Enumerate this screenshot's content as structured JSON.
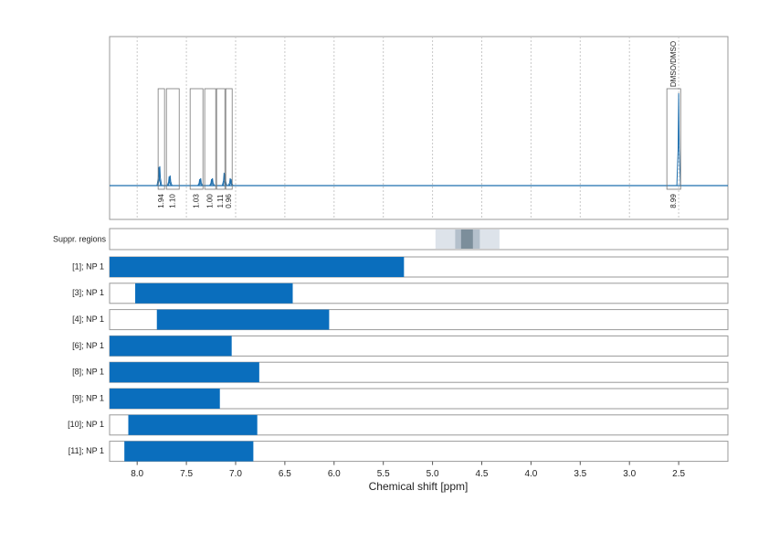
{
  "chart_data": {
    "type": "nmr-panels",
    "x_label": "Chemical shift [ppm]",
    "xlim": [
      8.28,
      2.0
    ],
    "xticks": [
      {
        "value": 8,
        "label": "8.0"
      },
      7.5,
      {
        "value": 7,
        "label": "7.0"
      },
      6.5,
      {
        "value": 6,
        "label": "6.0"
      },
      5.5,
      {
        "value": 5,
        "label": "5.0"
      },
      4.5,
      {
        "value": 4,
        "label": "4.0"
      },
      3.5,
      {
        "value": 3,
        "label": "3.0"
      },
      2.5
    ],
    "grid": true,
    "spectrum": {
      "color": "#1f6fae",
      "peaks": {
        "x": [
          7.78,
          7.77,
          7.675,
          7.665,
          7.365,
          7.355,
          7.245,
          7.235,
          7.117,
          7.108,
          7.055,
          7.045,
          2.5
        ],
        "values": [
          20,
          21,
          10,
          11,
          7,
          8,
          7,
          8,
          14,
          13,
          8,
          7,
          100
        ]
      }
    },
    "integrals": {
      "ranges": [
        [
          7.787,
          7.722
        ],
        [
          7.703,
          7.573
        ],
        [
          7.462,
          7.332
        ],
        [
          7.314,
          7.202
        ],
        [
          7.193,
          7.109
        ],
        [
          7.1,
          7.035
        ],
        [
          2.62,
          2.48
        ]
      ],
      "values": [
        1.94,
        1.1,
        1.03,
        1,
        1.11,
        0.96,
        8.99
      ],
      "value_labels": [
        "1.94",
        "1.10",
        "1.03",
        "1.00",
        "1.11",
        "0.96",
        "8.99"
      ],
      "names": [
        null,
        null,
        null,
        null,
        null,
        null,
        "DMSO/DMSO"
      ],
      "label_color": "#e8202a"
    },
    "suppression": {
      "label": "Suppr. regions",
      "regions": [
        [
          4.97,
          4.32
        ],
        [
          4.77,
          4.52
        ],
        [
          4.71,
          4.59
        ]
      ],
      "colors": [
        "#dde3ea",
        "#b4c0cc",
        "#7c8e9b"
      ]
    },
    "series": [
      {
        "name": "[1]; NP 1",
        "color": "#0a6ebd",
        "range": [
          8.28,
          5.29
        ]
      },
      {
        "name": "[3]; NP 1",
        "color": "#0a6ebd",
        "range": [
          8.02,
          6.42
        ]
      },
      {
        "name": "[4]; NP 1",
        "color": "#0a6ebd",
        "range": [
          7.8,
          6.05
        ]
      },
      {
        "name": "[6]; NP 1",
        "color": "#0a6ebd",
        "range": [
          8.28,
          7.04
        ]
      },
      {
        "name": "[8]; NP 1",
        "color": "#0a6ebd",
        "range": [
          8.28,
          6.76
        ]
      },
      {
        "name": "[9]; NP 1",
        "color": "#0a6ebd",
        "range": [
          8.28,
          7.16
        ]
      },
      {
        "name": "[10]; NP 1",
        "color": "#0a6ebd",
        "range": [
          8.09,
          6.78
        ]
      },
      {
        "name": "[11]; NP 1",
        "color": "#0a6ebd",
        "range": [
          8.13,
          6.82
        ]
      }
    ]
  }
}
